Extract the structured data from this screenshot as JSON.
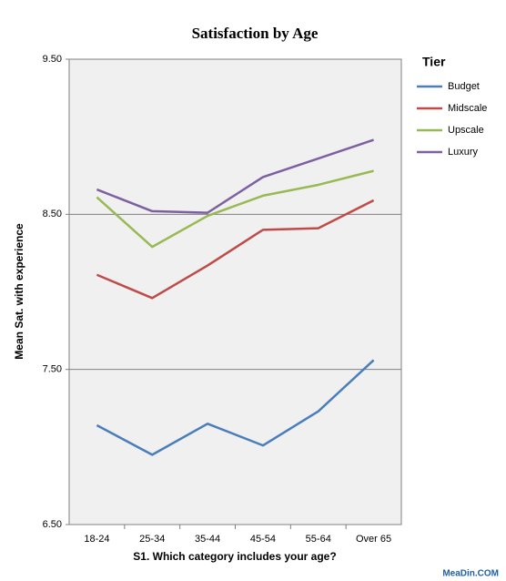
{
  "chart_data": {
    "type": "line",
    "title": "Satisfaction by Age",
    "x_label": "S1. Which category includes your age?",
    "y_label": "Mean Sat. with experience",
    "categories": [
      "18-24",
      "25-34",
      "35-44",
      "45-54",
      "55-64",
      "Over 65"
    ],
    "series": [
      {
        "name": "Budget",
        "color": "#4a7ebb",
        "values": [
          7.14,
          6.95,
          7.15,
          7.01,
          7.23,
          7.56
        ]
      },
      {
        "name": "Midscale",
        "color": "#be4b48",
        "values": [
          8.11,
          7.96,
          8.17,
          8.4,
          8.41,
          8.59
        ]
      },
      {
        "name": "Upscale",
        "color": "#98b954",
        "values": [
          8.61,
          8.29,
          8.49,
          8.62,
          8.69,
          8.78
        ]
      },
      {
        "name": "Luxury",
        "color": "#7d60a0",
        "values": [
          8.66,
          8.52,
          8.51,
          8.74,
          8.86,
          8.98
        ]
      }
    ],
    "ylim": [
      6.5,
      9.5
    ],
    "yticks": [
      {
        "value": 6.5,
        "label": "6.50"
      },
      {
        "value": 7.5,
        "label": "7.50"
      },
      {
        "value": 8.5,
        "label": "8.50"
      },
      {
        "value": 9.5,
        "label": "9.50"
      }
    ],
    "grid": true,
    "legend_title": "Tier",
    "legend_position": "right",
    "watermark": "MeaDin.COM"
  }
}
